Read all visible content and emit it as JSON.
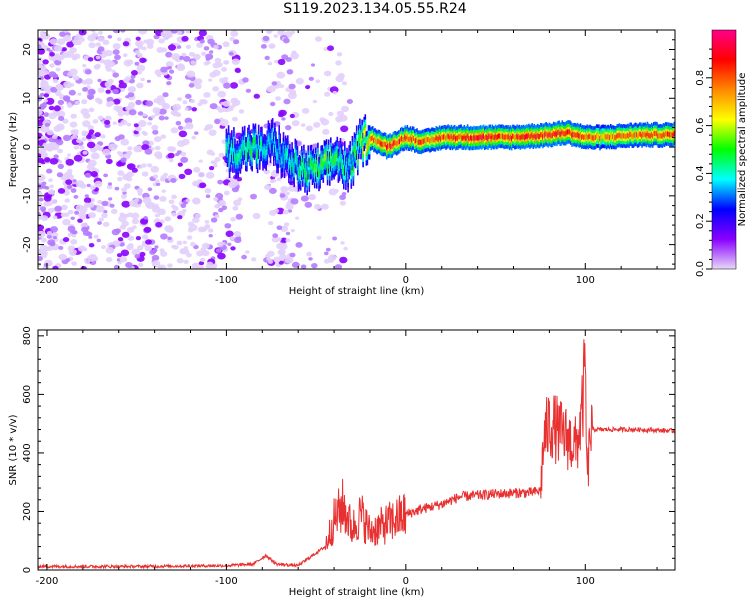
{
  "title": "S119.2023.134.05.55.R24",
  "chart_data": [
    {
      "type": "heatmap",
      "title": "",
      "xlabel": "Height of straight line (km)",
      "ylabel": "Frequency (Hz)",
      "xlim": [
        -205,
        150
      ],
      "ylim": [
        -25,
        24
      ],
      "xticks": [
        -200,
        -100,
        0,
        100
      ],
      "yticks": [
        -20,
        -10,
        0,
        10,
        20
      ],
      "colorbar": {
        "label": "Normalized spectral amplitude",
        "range": [
          0,
          1
        ],
        "ticks": [
          0.0,
          0.2,
          0.4,
          0.6,
          0.8
        ],
        "colormap": [
          "#e8d8f8",
          "#8800ff",
          "#0000ff",
          "#00ffff",
          "#00ff00",
          "#ffff00",
          "#ff8800",
          "#ff0000",
          "#ff0088"
        ]
      },
      "ridge": {
        "description_points_x": [
          -205,
          -120,
          -95,
          -85,
          -80,
          -75,
          -65,
          -55,
          -45,
          -38,
          -32,
          -25,
          -20,
          -10,
          0,
          10,
          20,
          40,
          60,
          80,
          90,
          100,
          110,
          130,
          150
        ],
        "frequency_hz": [
          0,
          0,
          -1,
          0,
          -1,
          1,
          -3,
          -5,
          -4,
          -2,
          -5,
          1,
          2,
          0,
          2,
          1,
          2,
          2,
          2,
          2.5,
          3,
          2,
          2,
          2.5,
          2.5
        ],
        "peak_amplitude": [
          0.15,
          0.25,
          0.4,
          0.45,
          0.35,
          0.3,
          0.35,
          0.45,
          0.5,
          0.45,
          0.35,
          0.55,
          0.75,
          0.9,
          0.85,
          0.8,
          0.85,
          0.9,
          0.85,
          0.9,
          0.95,
          0.8,
          0.75,
          0.8,
          0.85
        ]
      }
    },
    {
      "type": "line",
      "title": "",
      "xlabel": "Height of straight line (km)",
      "ylabel": "SNR (10 * v/v)",
      "xlim": [
        -205,
        150
      ],
      "ylim": [
        0,
        820
      ],
      "xticks": [
        -200,
        -100,
        0,
        100
      ],
      "yticks": [
        0,
        200,
        400,
        600,
        800
      ],
      "color": "#e83030",
      "envelope": {
        "x": [
          -205,
          -150,
          -100,
          -85,
          -78,
          -72,
          -60,
          -45,
          -40,
          -35,
          -30,
          -25,
          -20,
          -10,
          0,
          10,
          20,
          30,
          50,
          70,
          75,
          77,
          80,
          90,
          95,
          98,
          100,
          101,
          103,
          110,
          130,
          150
        ],
        "snr": [
          12,
          12,
          15,
          20,
          50,
          20,
          15,
          80,
          170,
          220,
          140,
          190,
          130,
          160,
          190,
          210,
          225,
          250,
          260,
          265,
          270,
          450,
          500,
          450,
          420,
          520,
          700,
          300,
          480,
          480,
          480,
          475
        ]
      }
    }
  ]
}
